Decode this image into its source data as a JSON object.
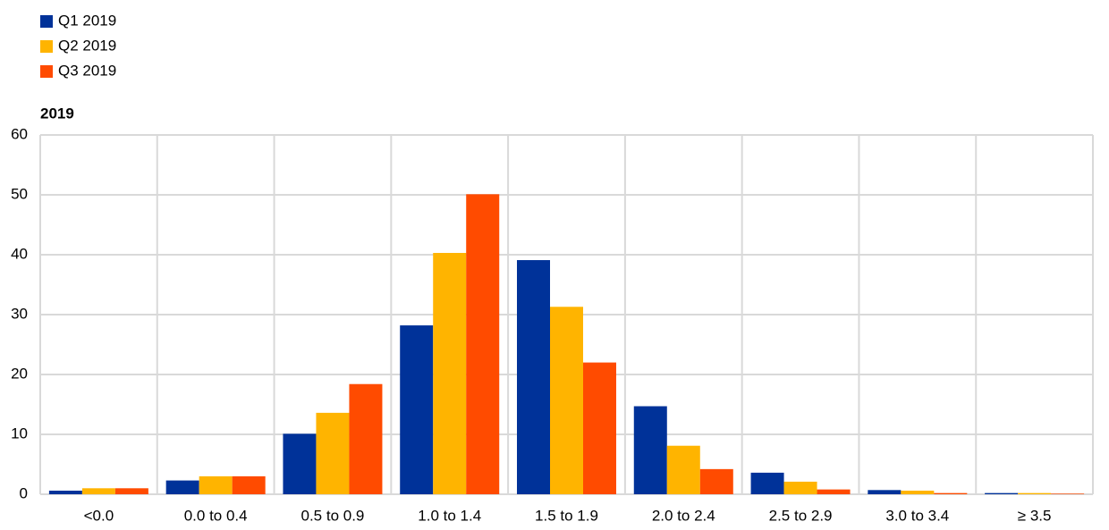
{
  "chart_data": {
    "type": "bar",
    "subtitle": "2019",
    "categories": [
      "<0.0",
      "0.0 to 0.4",
      "0.5 to 0.9",
      "1.0 to 1.4",
      "1.5 to 1.9",
      "2.0 to 2.4",
      "2.5 to 2.9",
      "3.0 to 3.4",
      "≥ 3.5"
    ],
    "series": [
      {
        "name": "Q1 2019",
        "color": "#003299",
        "values": [
          0.6,
          2.3,
          10.1,
          28.2,
          39.1,
          14.7,
          3.6,
          0.7,
          0.2
        ]
      },
      {
        "name": "Q2 2019",
        "color": "#ffb400",
        "values": [
          1.0,
          3.0,
          13.6,
          40.3,
          31.3,
          8.1,
          2.1,
          0.6,
          0.2
        ]
      },
      {
        "name": "Q3 2019",
        "color": "#ff4b00",
        "values": [
          1.0,
          3.0,
          18.4,
          50.1,
          22.0,
          4.2,
          0.8,
          0.2,
          0.1
        ]
      }
    ],
    "ylim": [
      0,
      60
    ],
    "yticks": [
      0,
      10,
      20,
      30,
      40,
      50,
      60
    ],
    "grid": true,
    "legend": "top-left"
  }
}
